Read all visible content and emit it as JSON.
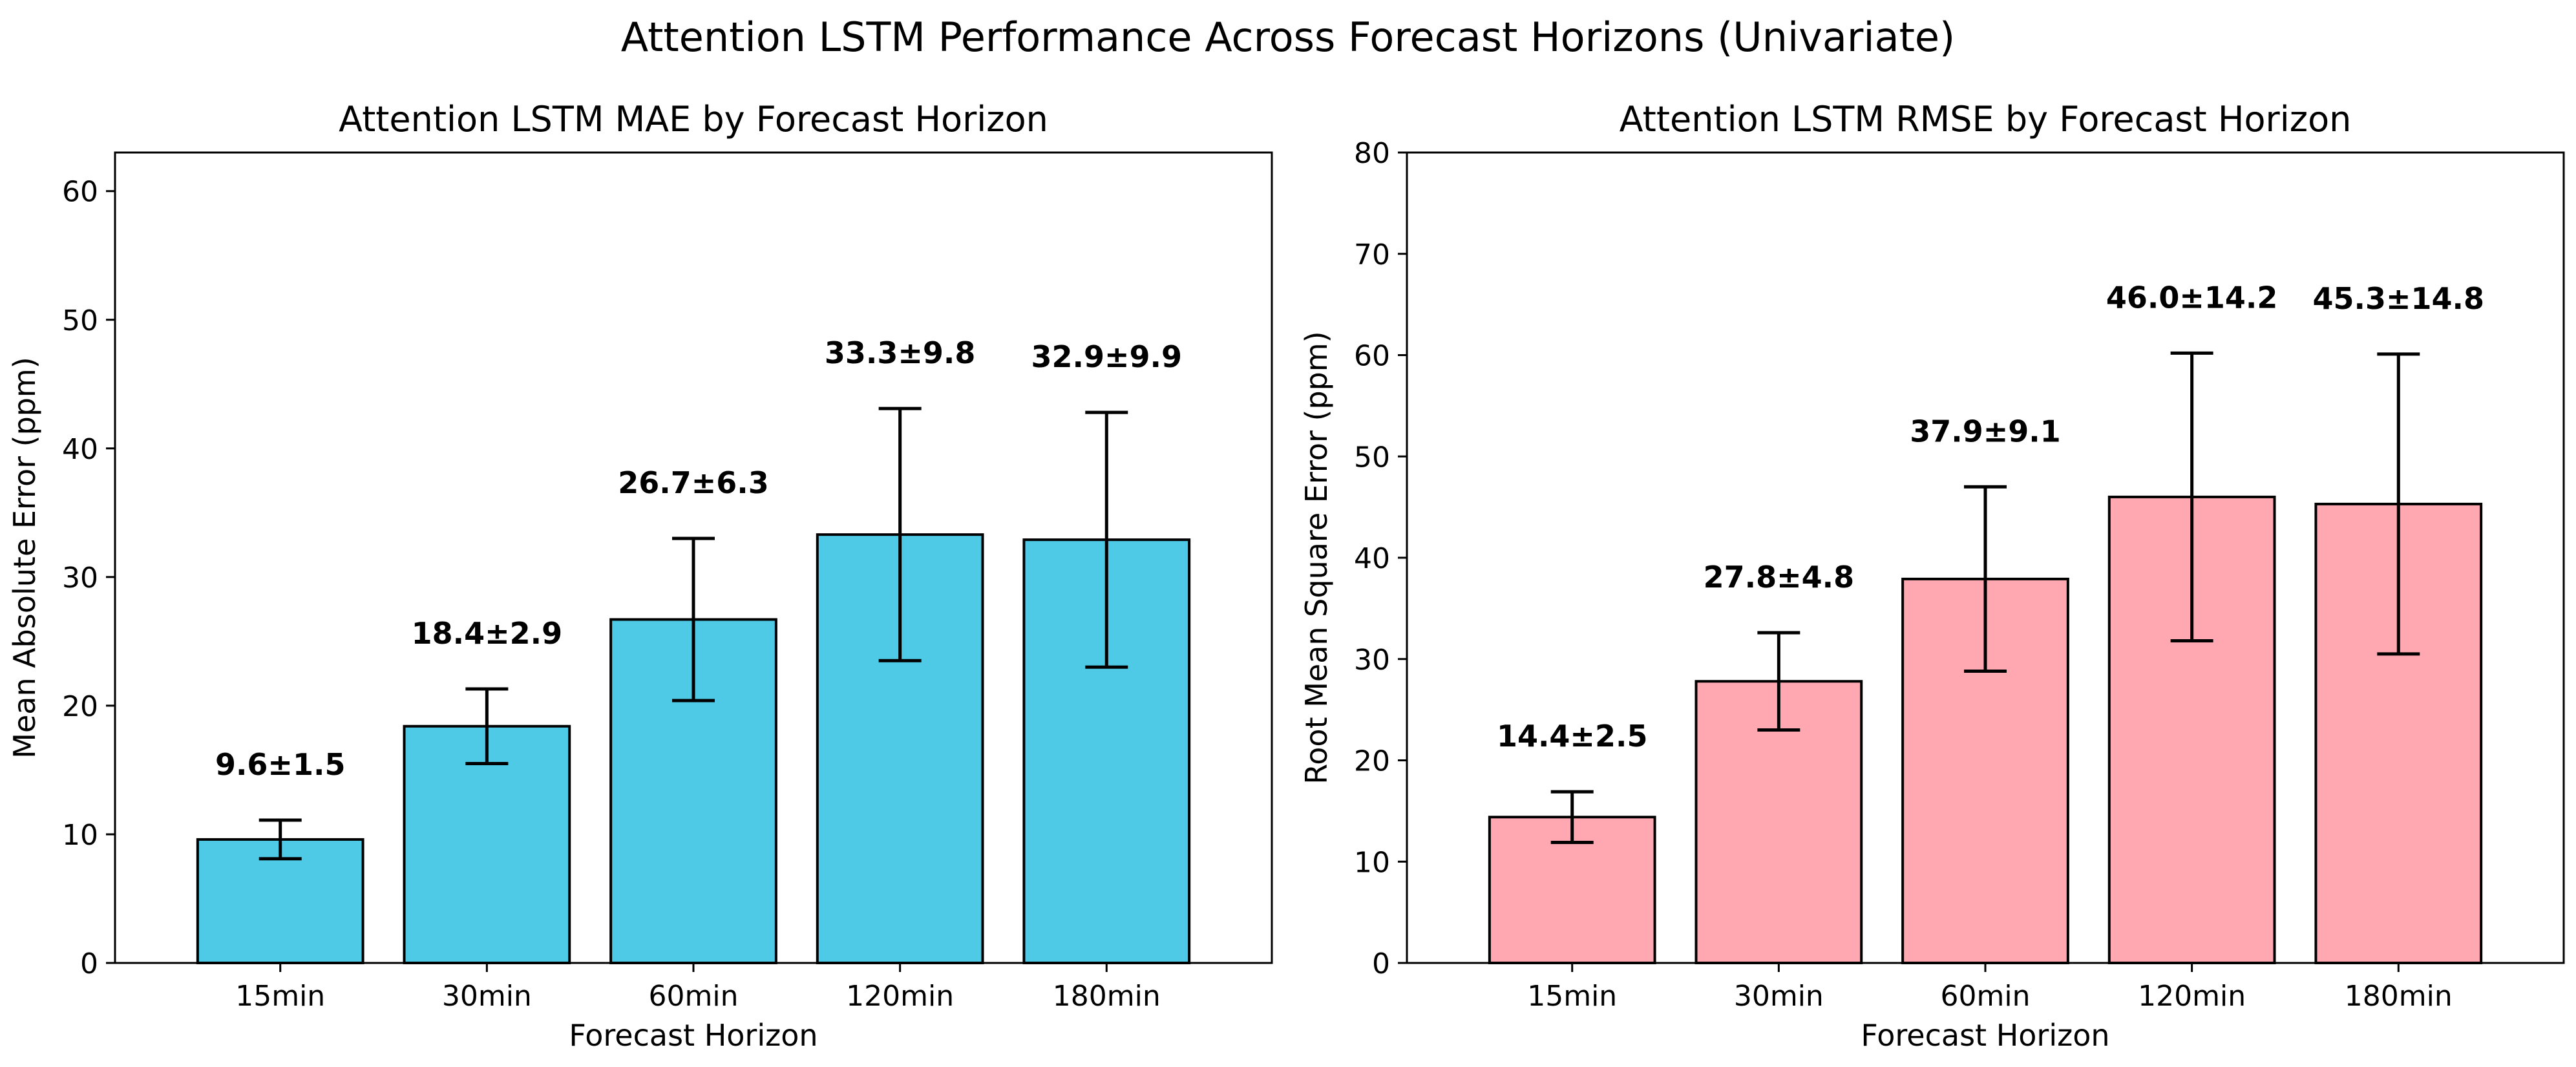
{
  "figure": {
    "title": "Attention LSTM Performance Across Forecast Horizons (Univariate)"
  },
  "chart_data": [
    {
      "type": "bar",
      "title": "Attention LSTM MAE by Forecast Horizon",
      "xlabel": "Forecast Horizon",
      "ylabel": "Mean Absolute Error (ppm)",
      "ylim": [
        0,
        63
      ],
      "yticks": [
        0,
        10,
        20,
        30,
        40,
        50,
        60
      ],
      "grid": false,
      "color": "#4ecae6",
      "categories": [
        "15min",
        "30min",
        "60min",
        "120min",
        "180min"
      ],
      "values": [
        9.6,
        18.4,
        26.7,
        33.3,
        32.9
      ],
      "errors": [
        1.5,
        2.9,
        6.3,
        9.8,
        9.9
      ],
      "data_labels": [
        "9.6±1.5",
        "18.4±2.9",
        "26.7±6.3",
        "33.3±9.8",
        "32.9±9.9"
      ]
    },
    {
      "type": "bar",
      "title": "Attention LSTM RMSE by Forecast Horizon",
      "xlabel": "Forecast Horizon",
      "ylabel": "Root Mean Square Error (ppm)",
      "ylim": [
        0,
        80
      ],
      "yticks": [
        0,
        10,
        20,
        30,
        40,
        50,
        60,
        70,
        80
      ],
      "grid": false,
      "color": "#ffa8b2",
      "categories": [
        "15min",
        "30min",
        "60min",
        "120min",
        "180min"
      ],
      "values": [
        14.4,
        27.8,
        37.9,
        46.0,
        45.3
      ],
      "errors": [
        2.5,
        4.8,
        9.1,
        14.2,
        14.8
      ],
      "data_labels": [
        "14.4±2.5",
        "27.8±4.8",
        "37.9±9.1",
        "46.0±14.2",
        "45.3±14.8"
      ]
    }
  ]
}
